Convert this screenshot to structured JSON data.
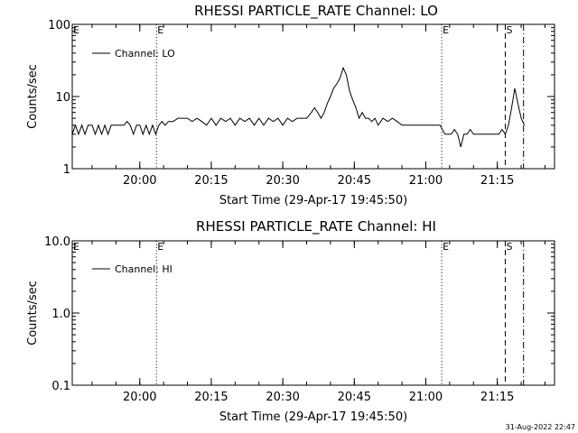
{
  "footer": {
    "timestamp": "31-Aug-2022 22:47"
  },
  "chart_data": [
    {
      "type": "line",
      "title": "RHESSI PARTICLE_RATE Channel: LO",
      "xlabel": "Start Time (29-Apr-17 19:45:50)",
      "ylabel": "Counts/sec",
      "y_scale": "log",
      "ylim": [
        1,
        100
      ],
      "xlim": [
        "19:45:50",
        "21:27:00"
      ],
      "x_ticks": [
        "20:00",
        "20:15",
        "20:30",
        "20:45",
        "21:00",
        "21:15"
      ],
      "y_ticks": [
        "1",
        "10",
        "100"
      ],
      "legend": {
        "position": "top-left",
        "label": "Channel: LO"
      },
      "markers": [
        {
          "time": "20:03:30",
          "style": "dotted",
          "label": "E"
        },
        {
          "time": "21:03:20",
          "style": "dotted",
          "label": "E"
        },
        {
          "time": "21:16:40",
          "style": "dashed",
          "label": "S"
        },
        {
          "time": "21:20:30",
          "style": "dashdot",
          "label": ""
        }
      ],
      "series": [
        {
          "name": "Channel: LO",
          "points": [
            [
              "19:45:50",
              3
            ],
            [
              "19:46:30",
              4
            ],
            [
              "19:47:10",
              3
            ],
            [
              "19:47:50",
              4
            ],
            [
              "19:48:30",
              3
            ],
            [
              "19:49:10",
              4
            ],
            [
              "19:50:00",
              4
            ],
            [
              "19:50:40",
              3
            ],
            [
              "19:51:20",
              4
            ],
            [
              "19:52:00",
              3
            ],
            [
              "19:52:40",
              4
            ],
            [
              "19:53:20",
              3
            ],
            [
              "19:54:00",
              4
            ],
            [
              "19:54:40",
              4
            ],
            [
              "19:55:20",
              4
            ],
            [
              "19:56:00",
              4
            ],
            [
              "19:56:40",
              4
            ],
            [
              "19:57:20",
              4.5
            ],
            [
              "19:58:00",
              4
            ],
            [
              "19:58:40",
              3
            ],
            [
              "19:59:20",
              4
            ],
            [
              "20:00:00",
              4
            ],
            [
              "20:00:40",
              3
            ],
            [
              "20:01:20",
              4
            ],
            [
              "20:02:00",
              3
            ],
            [
              "20:02:40",
              4
            ],
            [
              "20:03:20",
              3
            ],
            [
              "20:04:00",
              4
            ],
            [
              "20:04:40",
              4.5
            ],
            [
              "20:05:20",
              4
            ],
            [
              "20:06:00",
              4.5
            ],
            [
              "20:07:00",
              4.5
            ],
            [
              "20:08:00",
              5
            ],
            [
              "20:09:00",
              5
            ],
            [
              "20:10:00",
              5
            ],
            [
              "20:11:00",
              4.5
            ],
            [
              "20:12:00",
              5
            ],
            [
              "20:13:00",
              4.5
            ],
            [
              "20:14:00",
              4
            ],
            [
              "20:15:00",
              5
            ],
            [
              "20:16:00",
              4
            ],
            [
              "20:17:00",
              5
            ],
            [
              "20:18:00",
              4.5
            ],
            [
              "20:19:00",
              5
            ],
            [
              "20:20:00",
              4
            ],
            [
              "20:21:00",
              5
            ],
            [
              "20:22:00",
              4.5
            ],
            [
              "20:23:00",
              5
            ],
            [
              "20:24:00",
              4
            ],
            [
              "20:25:00",
              5
            ],
            [
              "20:26:00",
              4
            ],
            [
              "20:27:00",
              5
            ],
            [
              "20:28:00",
              4.5
            ],
            [
              "20:29:00",
              5
            ],
            [
              "20:30:00",
              4
            ],
            [
              "20:31:00",
              5
            ],
            [
              "20:32:00",
              4.5
            ],
            [
              "20:33:00",
              5
            ],
            [
              "20:34:00",
              5
            ],
            [
              "20:35:00",
              5
            ],
            [
              "20:36:00",
              6
            ],
            [
              "20:36:40",
              7
            ],
            [
              "20:37:20",
              6
            ],
            [
              "20:38:00",
              5
            ],
            [
              "20:38:40",
              6
            ],
            [
              "20:39:20",
              8
            ],
            [
              "20:40:00",
              10
            ],
            [
              "20:40:40",
              13
            ],
            [
              "20:41:20",
              15
            ],
            [
              "20:42:00",
              18
            ],
            [
              "20:42:40",
              25
            ],
            [
              "20:43:20",
              20
            ],
            [
              "20:44:00",
              12
            ],
            [
              "20:44:40",
              9
            ],
            [
              "20:45:20",
              7
            ],
            [
              "20:46:00",
              5
            ],
            [
              "20:46:40",
              6
            ],
            [
              "20:47:20",
              5
            ],
            [
              "20:48:00",
              5
            ],
            [
              "20:48:40",
              4.5
            ],
            [
              "20:49:20",
              5
            ],
            [
              "20:50:00",
              4
            ],
            [
              "20:51:00",
              5
            ],
            [
              "20:52:00",
              4.5
            ],
            [
              "20:53:00",
              5
            ],
            [
              "20:54:00",
              4.5
            ],
            [
              "20:55:00",
              4
            ],
            [
              "20:56:00",
              4
            ],
            [
              "20:57:00",
              4
            ],
            [
              "20:58:00",
              4
            ],
            [
              "20:59:00",
              4
            ],
            [
              "21:00:00",
              4
            ],
            [
              "21:01:00",
              4
            ],
            [
              "21:02:00",
              4
            ],
            [
              "21:03:00",
              4
            ],
            [
              "21:04:00",
              3
            ],
            [
              "21:04:40",
              3
            ],
            [
              "21:05:20",
              3
            ],
            [
              "21:06:00",
              3.5
            ],
            [
              "21:06:40",
              3
            ],
            [
              "21:07:20",
              2
            ],
            [
              "21:08:00",
              3
            ],
            [
              "21:08:40",
              3
            ],
            [
              "21:09:20",
              3.5
            ],
            [
              "21:10:00",
              3
            ],
            [
              "21:10:40",
              3
            ],
            [
              "21:11:20",
              3
            ],
            [
              "21:12:00",
              3
            ],
            [
              "21:12:40",
              3
            ],
            [
              "21:13:20",
              3
            ],
            [
              "21:14:00",
              3
            ],
            [
              "21:14:40",
              3
            ],
            [
              "21:15:20",
              3
            ],
            [
              "21:16:00",
              3.5
            ],
            [
              "21:16:40",
              3
            ],
            [
              "21:17:20",
              4
            ],
            [
              "21:18:00",
              7
            ],
            [
              "21:18:40",
              13
            ],
            [
              "21:19:20",
              8
            ],
            [
              "21:20:00",
              5
            ],
            [
              "21:20:40",
              4
            ]
          ]
        }
      ]
    },
    {
      "type": "line",
      "title": "RHESSI PARTICLE_RATE Channel: HI",
      "xlabel": "Start Time (29-Apr-17 19:45:50)",
      "ylabel": "Counts/sec",
      "y_scale": "log",
      "ylim": [
        0.1,
        10
      ],
      "xlim": [
        "19:45:50",
        "21:27:00"
      ],
      "x_ticks": [
        "20:00",
        "20:15",
        "20:30",
        "20:45",
        "21:00",
        "21:15"
      ],
      "y_ticks": [
        "0.1",
        "1.0",
        "10.0"
      ],
      "legend": {
        "position": "top-left",
        "label": "Channel: HI"
      },
      "markers": [
        {
          "time": "20:03:30",
          "style": "dotted",
          "label": "E"
        },
        {
          "time": "21:03:20",
          "style": "dotted",
          "label": "E"
        },
        {
          "time": "21:16:40",
          "style": "dashed",
          "label": "S"
        },
        {
          "time": "21:20:30",
          "style": "dashdot",
          "label": ""
        }
      ],
      "series": [
        {
          "name": "Channel: HI",
          "points": []
        }
      ]
    }
  ]
}
